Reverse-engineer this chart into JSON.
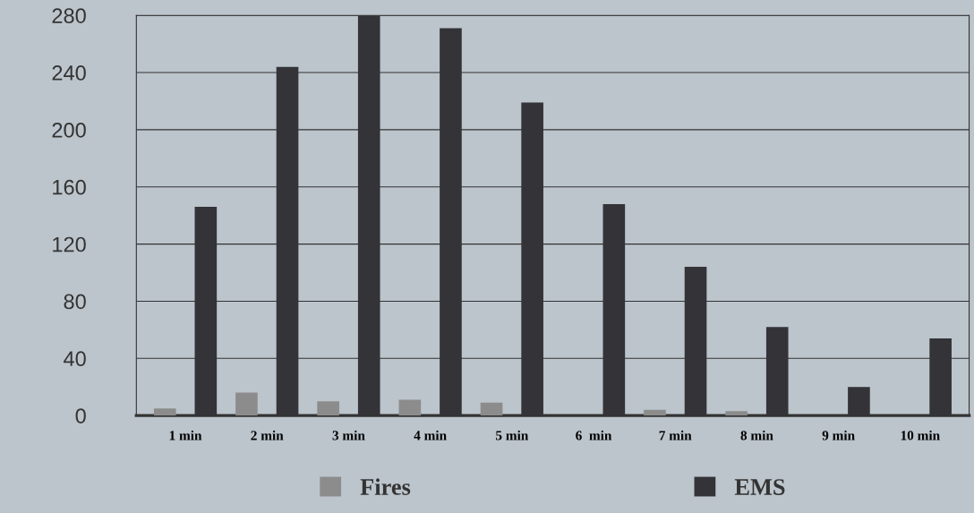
{
  "chart_data": {
    "type": "bar",
    "categories": [
      "1 min",
      "2 min",
      "3 min",
      "4 min",
      "5 min",
      "6  min",
      "7 min",
      "8 min",
      "9 min",
      "10 min"
    ],
    "series": [
      {
        "name": "Fires",
        "color": "#8c8c8c",
        "values": [
          5,
          16,
          10,
          11,
          9,
          0,
          4,
          3,
          0,
          0
        ]
      },
      {
        "name": "EMS",
        "color": "#333338",
        "values": [
          146,
          244,
          280,
          271,
          219,
          148,
          104,
          62,
          20,
          54
        ]
      }
    ],
    "ylim": [
      0,
      280
    ],
    "yticks": [
      0,
      40,
      80,
      120,
      160,
      200,
      240,
      280
    ],
    "grid": "y",
    "legend": "bottom"
  }
}
